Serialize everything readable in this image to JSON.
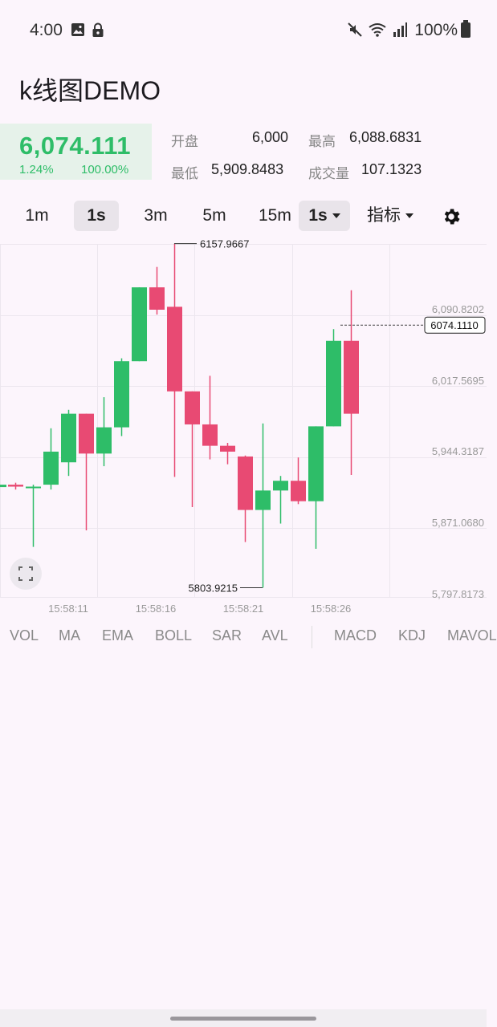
{
  "status_bar": {
    "time": "4:00",
    "left_icons": [
      "image-icon",
      "lock-icon"
    ],
    "right_icons": [
      "mute-icon",
      "wifi-icon",
      "signal-icon"
    ],
    "battery": "100%"
  },
  "app": {
    "title": "k线图DEMO"
  },
  "ticker": {
    "price": "6,074.111",
    "change_pct": "1.24%",
    "ratio": "100.00%",
    "open_label": "开盘",
    "open_value": "6,000",
    "high_label": "最高",
    "high_value": "6,088.6831",
    "low_label": "最低",
    "low_value": "5,909.8483",
    "volume_label": "成交量",
    "volume_value": "107.1323",
    "up_color": "#2ebd68",
    "down_color": "#e84a73"
  },
  "periods": {
    "items": [
      "1m",
      "1s",
      "3m",
      "5m",
      "15m"
    ],
    "active": "1s",
    "dropdown_value": "1s",
    "indicator_label": "指标"
  },
  "chart_data": {
    "type": "candlestick",
    "y_ticks": [
      "6,090.8202",
      "6,017.5695",
      "5,944.3187",
      "5,871.0680",
      "5,797.8173"
    ],
    "x_ticks": [
      "15:58:11",
      "15:58:16",
      "15:58:21",
      "15:58:26"
    ],
    "ylim": [
      5797.8173,
      6164.0711
    ],
    "max_marker": "6157.9667",
    "min_marker": "5803.9215",
    "current_price_marker": "6074.1110",
    "candles": [
      {
        "open": 5910,
        "close": 5908,
        "high": 5912,
        "low": 5905
      },
      {
        "open": 5908,
        "close": 5908,
        "high": 5910,
        "low": 5846
      },
      {
        "open": 5910,
        "close": 5944,
        "high": 5968,
        "low": 5905
      },
      {
        "open": 5933,
        "close": 5983,
        "high": 5987,
        "low": 5919
      },
      {
        "open": 5983,
        "close": 5942,
        "high": 5983,
        "low": 5863
      },
      {
        "open": 5942,
        "close": 5969,
        "high": 6000,
        "low": 5929
      },
      {
        "open": 5969,
        "close": 6037,
        "high": 6040,
        "low": 5960
      },
      {
        "open": 6037,
        "close": 6113,
        "high": 6113,
        "low": 6037
      },
      {
        "open": 6113,
        "close": 6090,
        "high": 6134,
        "low": 6085
      },
      {
        "open": 6093,
        "close": 6006,
        "high": 6158,
        "low": 5918
      },
      {
        "open": 6006,
        "close": 5972,
        "high": 6006,
        "low": 5887
      },
      {
        "open": 5972,
        "close": 5950,
        "high": 6022,
        "low": 5936
      },
      {
        "open": 5950,
        "close": 5944,
        "high": 5953,
        "low": 5931
      },
      {
        "open": 5939,
        "close": 5884,
        "high": 5940,
        "low": 5851
      },
      {
        "open": 5884,
        "close": 5904,
        "high": 5973,
        "low": 5804
      },
      {
        "open": 5904,
        "close": 5914,
        "high": 5919,
        "low": 5870
      },
      {
        "open": 5914,
        "close": 5893,
        "high": 5938,
        "low": 5890
      },
      {
        "open": 5893,
        "close": 5970,
        "high": 5970,
        "low": 5844
      },
      {
        "open": 5970,
        "close": 6058,
        "high": 6070,
        "low": 5970
      },
      {
        "open": 6058,
        "close": 5983,
        "high": 6110,
        "low": 5920
      }
    ]
  },
  "indicators": {
    "main": [
      "VOL",
      "MA",
      "EMA",
      "BOLL",
      "SAR",
      "AVL"
    ],
    "sub": [
      "MACD",
      "KDJ",
      "MAVOL"
    ]
  }
}
